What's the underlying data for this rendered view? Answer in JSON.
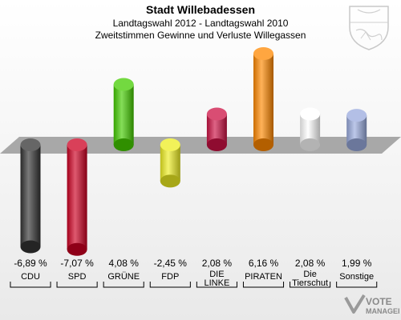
{
  "header": {
    "title": "Stadt Willebadessen",
    "subtitle": "Landtagswahl 2012 - Landtagswahl 2010",
    "subtitle2": "Zweitstimmen Gewinne und Verluste Willegassen"
  },
  "logo": {
    "line1": "VOTE",
    "line2": "MANAGER"
  },
  "chart_data": {
    "type": "bar",
    "title": "Stadt Willebadessen",
    "subtitle": "Landtagswahl 2012 - Landtagswahl 2010 · Zweitstimmen Gewinne und Verluste Willegassen",
    "categories": [
      "CDU",
      "SPD",
      "GRÜNE",
      "FDP",
      "DIE LINKE",
      "PIRATEN",
      "Die Tierschutzpartei",
      "Sonstige"
    ],
    "category_labels": [
      [
        "CDU"
      ],
      [
        "SPD"
      ],
      [
        "GRÜNE"
      ],
      [
        "FDP"
      ],
      [
        "DIE",
        "LINKE"
      ],
      [
        "PIRATEN"
      ],
      [
        "Die",
        "Tierschut"
      ],
      [
        "Sonstige"
      ]
    ],
    "values": [
      -6.89,
      -7.07,
      4.08,
      -2.45,
      2.08,
      6.16,
      2.08,
      1.99
    ],
    "value_labels": [
      "-6,89 %",
      "-7,07 %",
      "4,08 %",
      "-2,45 %",
      "2,08 %",
      "6,16 %",
      "2,08 %",
      "1,99 %"
    ],
    "colors": [
      "#333333",
      "#cc0022",
      "#44cc00",
      "#eeee22",
      "#cc1144",
      "#ff8800",
      "#ffffff",
      "#99aadd"
    ],
    "ylim": [
      -7.5,
      7.0
    ],
    "grid": false,
    "legend": "none"
  }
}
